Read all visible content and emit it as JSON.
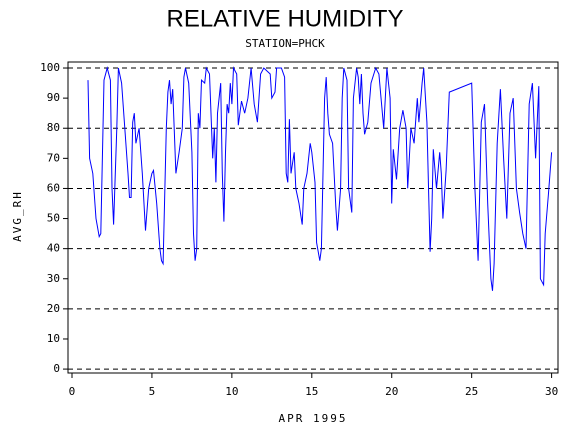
{
  "chart_data": {
    "type": "line",
    "title": "RELATIVE HUMIDITY",
    "subtitle": "STATION=PHCK",
    "x_label": "APR 1995",
    "y_label": "AVG_RH",
    "xlim": [
      -0.25,
      30.4
    ],
    "ylim": [
      -1.3,
      102
    ],
    "xticks": [
      0,
      5,
      10,
      15,
      20,
      25,
      30
    ],
    "yticks": [
      0,
      10,
      20,
      30,
      40,
      50,
      60,
      70,
      80,
      90,
      100
    ],
    "grid_y": [
      0,
      20,
      40,
      60,
      80,
      100
    ],
    "x": [
      1.0,
      1.1,
      1.3,
      1.5,
      1.7,
      1.8,
      2.0,
      2.2,
      2.4,
      2.5,
      2.6,
      2.8,
      2.9,
      3.1,
      3.3,
      3.5,
      3.6,
      3.7,
      3.8,
      3.9,
      4.0,
      4.2,
      4.4,
      4.6,
      4.8,
      5.0,
      5.1,
      5.3,
      5.5,
      5.6,
      5.7,
      5.9,
      6.0,
      6.1,
      6.2,
      6.3,
      6.5,
      6.7,
      6.9,
      7.0,
      7.1,
      7.3,
      7.5,
      7.6,
      7.7,
      7.8,
      7.9,
      8.0,
      8.1,
      8.3,
      8.4,
      8.6,
      8.8,
      8.9,
      9.0,
      9.1,
      9.3,
      9.4,
      9.5,
      9.6,
      9.7,
      9.8,
      9.9,
      10.0,
      10.1,
      10.3,
      10.4,
      10.6,
      10.8,
      11.0,
      11.2,
      11.4,
      11.6,
      11.8,
      12.0,
      12.2,
      12.4,
      12.5,
      12.7,
      12.8,
      13.1,
      13.3,
      13.4,
      13.5,
      13.6,
      13.7,
      13.9,
      14.0,
      14.2,
      14.4,
      14.5,
      14.7,
      14.9,
      15.0,
      15.2,
      15.3,
      15.5,
      15.6,
      15.8,
      15.9,
      16.0,
      16.1,
      16.3,
      16.5,
      16.6,
      16.8,
      16.9,
      17.0,
      17.2,
      17.3,
      17.5,
      17.6,
      17.8,
      17.9,
      18.0,
      18.1,
      18.2,
      18.3,
      18.5,
      18.7,
      19.0,
      19.2,
      19.5,
      19.7,
      19.9,
      20.0,
      20.1,
      20.3,
      20.5,
      20.7,
      20.9,
      21.0,
      21.2,
      21.4,
      21.6,
      21.7,
      21.9,
      22.0,
      22.2,
      22.4,
      22.5,
      22.6,
      22.8,
      23.0,
      23.1,
      23.2,
      23.4,
      23.6,
      25.0,
      25.2,
      25.4,
      25.6,
      25.8,
      26.0,
      26.2,
      26.3,
      26.4,
      26.6,
      26.8,
      27.0,
      27.2,
      27.4,
      27.6,
      27.8,
      28.0,
      28.2,
      28.4,
      28.6,
      28.8,
      29.0,
      29.2,
      29.3,
      29.5,
      29.6,
      29.8,
      30.0
    ],
    "series": [
      {
        "name": "AVG_RH",
        "color": "#0000ff",
        "values": [
          96,
          70,
          65,
          50,
          44,
          45,
          96,
          100,
          96,
          60,
          48,
          80,
          100,
          95,
          80,
          65,
          57,
          57,
          82,
          85,
          75,
          80,
          65,
          46,
          60,
          65,
          66,
          55,
          40,
          36,
          35,
          80,
          92,
          96,
          88,
          93,
          65,
          72,
          80,
          97,
          100,
          95,
          72,
          45,
          36,
          40,
          85,
          80,
          96,
          95,
          100,
          98,
          70,
          80,
          62,
          85,
          95,
          65,
          49,
          72,
          88,
          85,
          95,
          88,
          100,
          98,
          81,
          89,
          85,
          90,
          100,
          88,
          82,
          98,
          100,
          99,
          98,
          90,
          92,
          100,
          100,
          97,
          65,
          62,
          83,
          65,
          72,
          60,
          55,
          48,
          60,
          65,
          75,
          72,
          62,
          42,
          36,
          40,
          90,
          97,
          85,
          78,
          75,
          54,
          46,
          60,
          90,
          100,
          96,
          60,
          52,
          90,
          100,
          97,
          88,
          98,
          85,
          78,
          82,
          95,
          100,
          98,
          80,
          100,
          90,
          55,
          73,
          63,
          80,
          86,
          80,
          60,
          80,
          75,
          90,
          82,
          95,
          100,
          82,
          39,
          50,
          73,
          60,
          72,
          65,
          50,
          66,
          92,
          95,
          60,
          36,
          82,
          88,
          55,
          30,
          26,
          35,
          75,
          93,
          70,
          50,
          85,
          90,
          60,
          52,
          45,
          40,
          88,
          95,
          70,
          94,
          30,
          28,
          45,
          58,
          72
        ]
      }
    ]
  }
}
